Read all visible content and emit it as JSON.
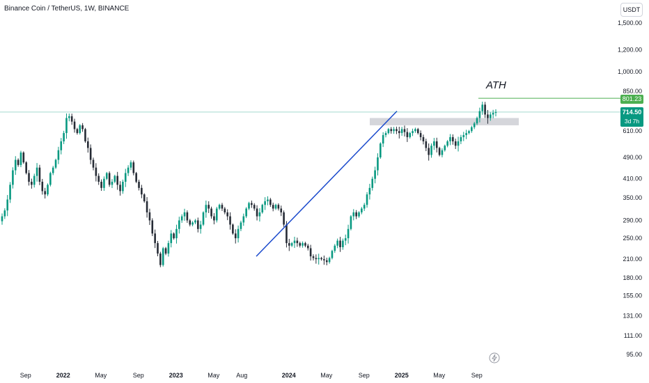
{
  "header": {
    "symbol_title": "Binance Coin / TetherUS, 1W, BINANCE"
  },
  "currency_button": {
    "label": "USDT"
  },
  "annotation": {
    "ath_label": "ATH"
  },
  "last_price": {
    "value": "714.50",
    "countdown": "3d 7h"
  },
  "ath_price": {
    "value": "801.23"
  },
  "icons": {
    "snapshot": "lightning-bolt-icon"
  },
  "colors": {
    "up": "#089981",
    "down": "#262b35",
    "trendline": "#1848cc",
    "ath_line": "#4caf50",
    "zone": "#b2b5be",
    "last_price_line": "#089981"
  },
  "chart_data": {
    "type": "candlestick",
    "title": "Binance Coin / TetherUS, 1W, BINANCE",
    "y_scale": "log",
    "y_ticks": [
      1500,
      1200,
      1000,
      850,
      801.23,
      714.5,
      610,
      490,
      410,
      350,
      290,
      250,
      210,
      180,
      155,
      131,
      111,
      95
    ],
    "y_tick_labels": [
      "1,500.00",
      "1,200.00",
      "1,000.00",
      "850.00",
      "801.23",
      "714.50",
      "610.00",
      "490.00",
      "410.00",
      "350.00",
      "290.00",
      "250.00",
      "210.00",
      "180.00",
      "155.00",
      "131.00",
      "111.00",
      "95.00"
    ],
    "x_tick_labels": [
      "Sep",
      "2022",
      "May",
      "Sep",
      "2023",
      "May",
      "Aug",
      "2024",
      "May",
      "Sep",
      "2025",
      "May",
      "Sep"
    ],
    "x_range": [
      "2021-08",
      "2025-10"
    ],
    "last_price": 714.5,
    "ath_level": 801.23,
    "resistance_zone": [
      640,
      680
    ],
    "trendline": {
      "from": [
        "2023-10",
        215
      ],
      "to": [
        "2024-12",
        720
      ]
    },
    "annotations": [
      "ATH"
    ],
    "candles_close": [
      300,
      315,
      345,
      390,
      440,
      480,
      460,
      510,
      470,
      430,
      400,
      390,
      420,
      450,
      400,
      370,
      360,
      390,
      430,
      450,
      480,
      520,
      560,
      600,
      680,
      690,
      660,
      620,
      600,
      640,
      620,
      560,
      530,
      480,
      450,
      420,
      400,
      380,
      410,
      430,
      390,
      400,
      420,
      390,
      370,
      400,
      430,
      450,
      470,
      430,
      400,
      380,
      360,
      340,
      310,
      290,
      260,
      240,
      220,
      200,
      230,
      220,
      240,
      260,
      250,
      270,
      290,
      300,
      310,
      290,
      280,
      285,
      290,
      270,
      280,
      310,
      330,
      320,
      300,
      290,
      320,
      330,
      320,
      310,
      300,
      280,
      260,
      250,
      270,
      285,
      300,
      320,
      335,
      330,
      320,
      300,
      310,
      330,
      340,
      345,
      330,
      320,
      330,
      320,
      310,
      280,
      240,
      235,
      240,
      245,
      240,
      235,
      240,
      235,
      230,
      215,
      212,
      210,
      212,
      210,
      208,
      205,
      212,
      225,
      235,
      245,
      232,
      245,
      250,
      270,
      300,
      310,
      300,
      310,
      320,
      330,
      360,
      380,
      410,
      440,
      490,
      550,
      590,
      600,
      620,
      610,
      620,
      610,
      600,
      620,
      605,
      580,
      600,
      610,
      620,
      600,
      580,
      560,
      530,
      500,
      540,
      560,
      530,
      500,
      520,
      540,
      560,
      580,
      560,
      540,
      560,
      580,
      590,
      600,
      610,
      630,
      650,
      680,
      720,
      760,
      700,
      680,
      700,
      710,
      714.5
    ]
  }
}
